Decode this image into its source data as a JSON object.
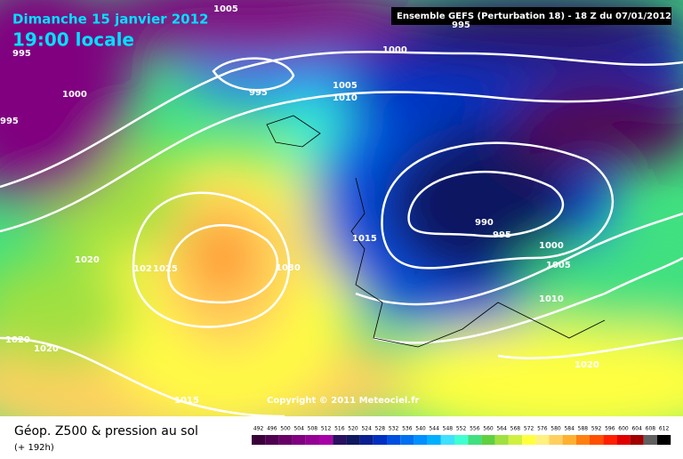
{
  "header": {
    "title": "Dimanche 15 janvier 2012",
    "time": "19:00 locale",
    "run": "Ensemble GEFS (Perturbation 18)  -  18 Z du 07/01/2012"
  },
  "isobar_labels": [
    "1005",
    "995",
    "995",
    "1000",
    "995",
    "1000",
    "995",
    "1005",
    "1010",
    "1015",
    "990",
    "995",
    "1000",
    "1005",
    "1010",
    "1020",
    "102",
    "1025",
    "1030",
    "1020",
    "1020",
    "1015",
    "1020"
  ],
  "copyright": "Copyright © 2011 Meteociel.fr",
  "legend": {
    "title": "Géop. Z500 & pression au sol",
    "subtitle": "(+ 192h)",
    "values": [
      492,
      496,
      500,
      504,
      508,
      512,
      516,
      520,
      524,
      528,
      532,
      536,
      540,
      544,
      548,
      552,
      556,
      560,
      564,
      568,
      572,
      576,
      580,
      584,
      588,
      592,
      596,
      600,
      604,
      608,
      612
    ],
    "colors": [
      "#3a003a",
      "#500050",
      "#680068",
      "#800080",
      "#940094",
      "#a800a8",
      "#2a1060",
      "#101860",
      "#0a2090",
      "#0030c0",
      "#0050e0",
      "#0070f0",
      "#0090ff",
      "#00b0ff",
      "#40e0ff",
      "#40ffd0",
      "#40e080",
      "#60d040",
      "#a0e040",
      "#d0f040",
      "#ffff40",
      "#fff080",
      "#ffd060",
      "#ffb030",
      "#ff8010",
      "#ff5000",
      "#ff2000",
      "#e00000",
      "#a00000",
      "#606060",
      "#000000"
    ]
  }
}
